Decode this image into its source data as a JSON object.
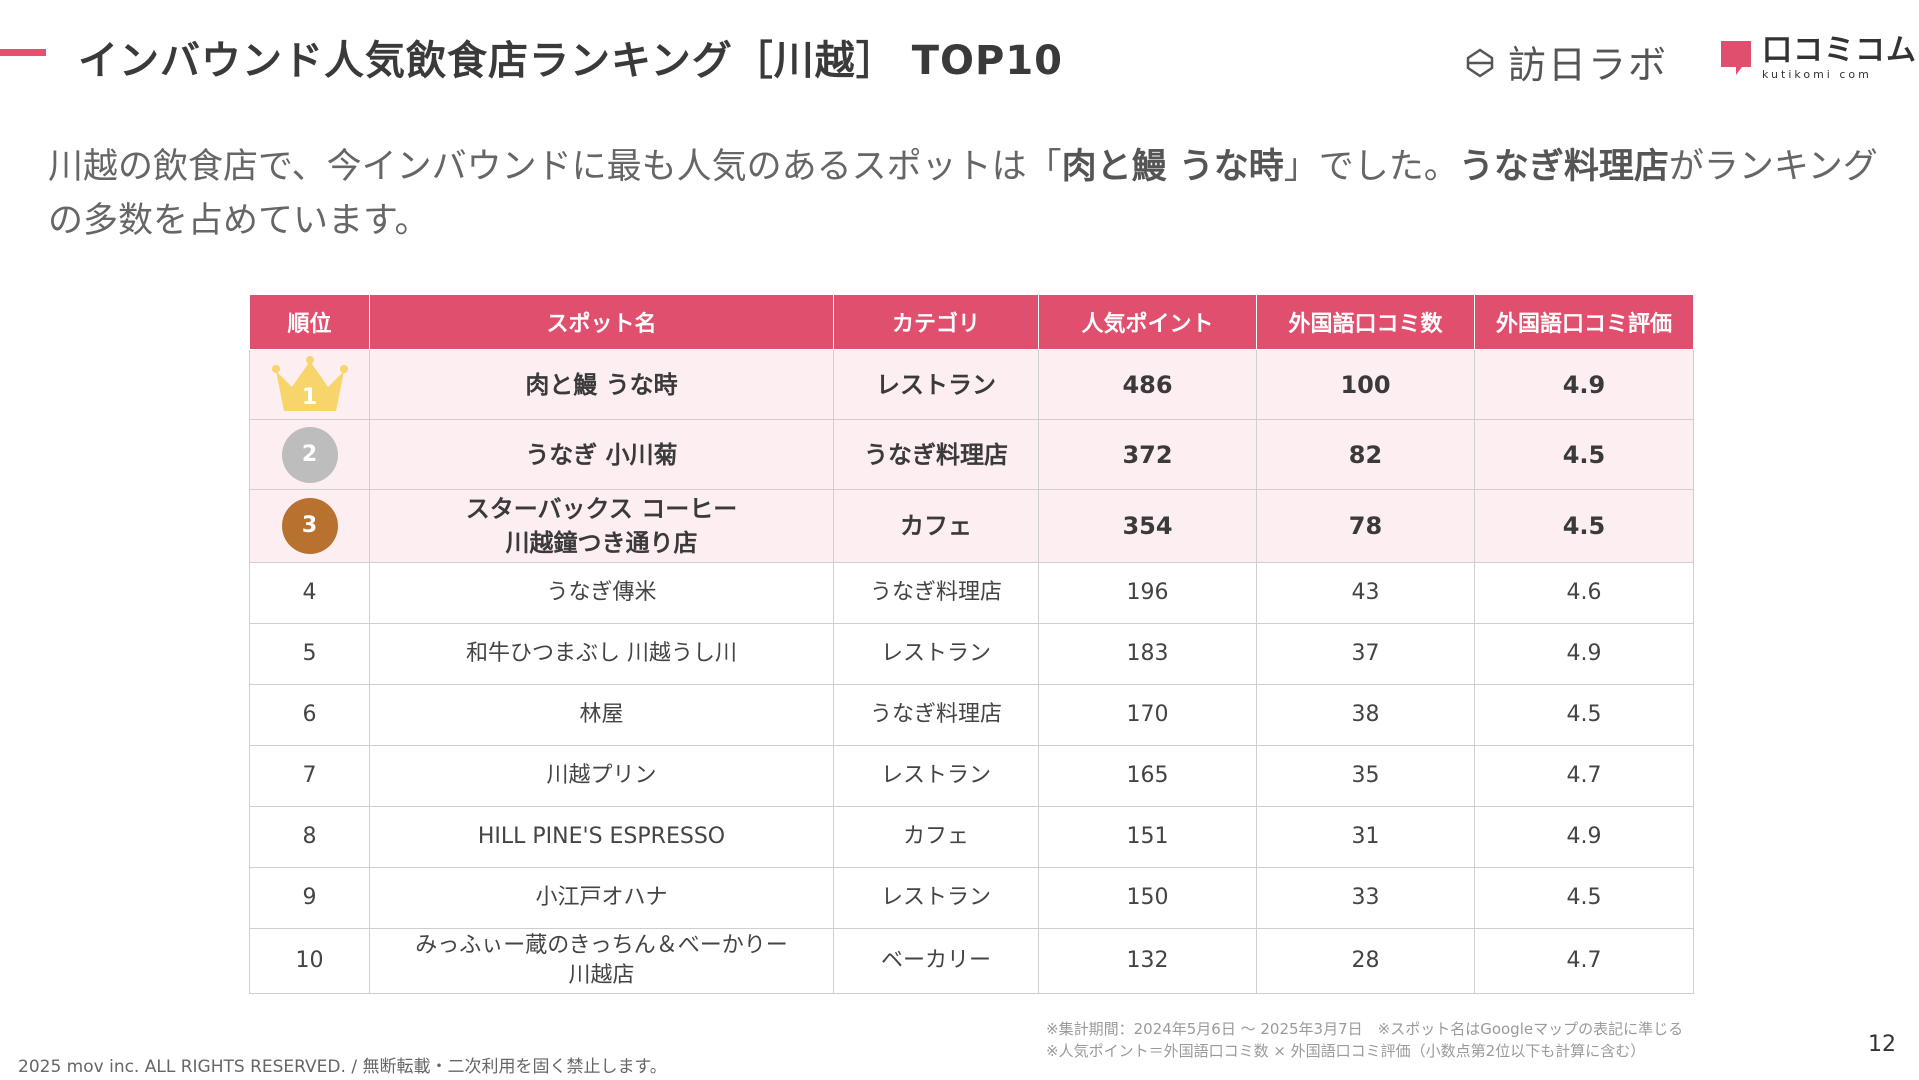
{
  "header": {
    "title": "インバウンド人気飲食店ランキング［川越］ TOP10",
    "logo_houjin": "訪日ラボ",
    "logo_kuchikomi": "口コミコム",
    "logo_kuchikomi_sub": "kutikomi com"
  },
  "lead": {
    "part1": "川越の飲食店で、今インバウンドに最も人気のあるスポットは「",
    "highlight1": "肉と鰻 うな時",
    "part2": "」でした。",
    "highlight2": "うなぎ料理店",
    "part3": "がランキングの多数を占めています。"
  },
  "table": {
    "headers": [
      "順位",
      "スポット名",
      "カテゴリ",
      "人気ポイント",
      "外国語口コミ数",
      "外国語口コミ評価"
    ],
    "rows": [
      {
        "rank": "1",
        "name_line1": "肉と鰻 うな時",
        "name_line2": "",
        "category": "レストラン",
        "points": "486",
        "reviews": "100",
        "rating": "4.9"
      },
      {
        "rank": "2",
        "name_line1": "うなぎ 小川菊",
        "name_line2": "",
        "category": "うなぎ料理店",
        "points": "372",
        "reviews": "82",
        "rating": "4.5"
      },
      {
        "rank": "3",
        "name_line1": "スターバックス コーヒー",
        "name_line2": "川越鐘つき通り店",
        "category": "カフェ",
        "points": "354",
        "reviews": "78",
        "rating": "4.5"
      },
      {
        "rank": "4",
        "name_line1": "うなぎ傳米",
        "name_line2": "",
        "category": "うなぎ料理店",
        "points": "196",
        "reviews": "43",
        "rating": "4.6"
      },
      {
        "rank": "5",
        "name_line1": "和牛ひつまぶし 川越うし川",
        "name_line2": "",
        "category": "レストラン",
        "points": "183",
        "reviews": "37",
        "rating": "4.9"
      },
      {
        "rank": "6",
        "name_line1": "林屋",
        "name_line2": "",
        "category": "うなぎ料理店",
        "points": "170",
        "reviews": "38",
        "rating": "4.5"
      },
      {
        "rank": "7",
        "name_line1": "川越プリン",
        "name_line2": "",
        "category": "レストラン",
        "points": "165",
        "reviews": "35",
        "rating": "4.7"
      },
      {
        "rank": "8",
        "name_line1": "HILL PINE'S ESPRESSO",
        "name_line2": "",
        "category": "カフェ",
        "points": "151",
        "reviews": "31",
        "rating": "4.9"
      },
      {
        "rank": "9",
        "name_line1": "小江戸オハナ",
        "name_line2": "",
        "category": "レストラン",
        "points": "150",
        "reviews": "33",
        "rating": "4.5"
      },
      {
        "rank": "10",
        "name_line1": "みっふぃー蔵のきっちん＆べーかりー",
        "name_line2": "川越店",
        "category": "ベーカリー",
        "points": "132",
        "reviews": "28",
        "rating": "4.7"
      }
    ]
  },
  "notes": {
    "line1": "※集計期間：2024年5月6日 〜 2025年3月7日　※スポット名はGoogleマップの表記に準じる",
    "line2": "※人気ポイント＝外国語口コミ数 × 外国語口コミ評価（小数点第2位以下も計算に含む）"
  },
  "footer": {
    "copyright": "2025 mov inc. ALL RIGHTS RESERVED. / 無断転載・二次利用を固く禁止します。",
    "page": "12"
  },
  "colors": {
    "accent": "#e0506e",
    "row_highlight": "#fdeef2",
    "gold": "#f7d56b",
    "silver": "#bdbdbd",
    "bronze": "#b8722f"
  }
}
